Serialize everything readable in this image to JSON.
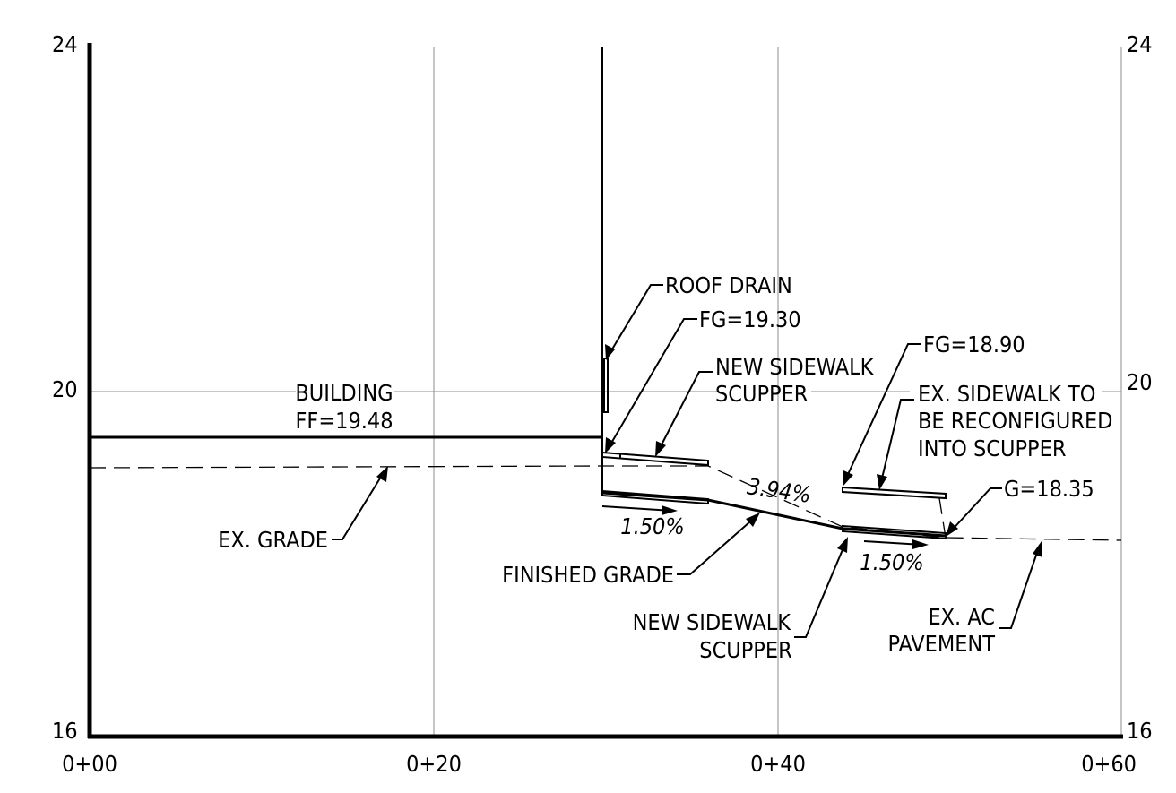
{
  "axes": {
    "y_ticks_left": [
      "24",
      "20",
      "16"
    ],
    "y_ticks_right": [
      "24",
      "20",
      "16"
    ],
    "x_ticks": [
      "0+00",
      "0+20",
      "0+40",
      "0+60"
    ]
  },
  "labels": {
    "building": "BUILDING",
    "building_ff": "FF=19.48",
    "ex_grade": "EX. GRADE",
    "roof_drain": "ROOF DRAIN",
    "fg_1": "FG=19.30",
    "new_sidewalk_scupper_top_1": "NEW SIDEWALK",
    "new_sidewalk_scupper_top_2": "SCUPPER",
    "slope_1": "1.50%",
    "slope_2": "3.94%",
    "slope_3": "1.50%",
    "finished_grade": "FINISHED GRADE",
    "fg_2": "FG=18.90",
    "ex_sidewalk_1": "EX. SIDEWALK TO",
    "ex_sidewalk_2": "BE RECONFIGURED",
    "ex_sidewalk_3": "INTO SCUPPER",
    "g_1835": "G=18.35",
    "new_sidewalk_scupper_bottom_1": "NEW SIDEWALK",
    "new_sidewalk_scupper_bottom_2": "SCUPPER",
    "ex_ac_1": "EX. AC",
    "ex_ac_2": "PAVEMENT"
  }
}
